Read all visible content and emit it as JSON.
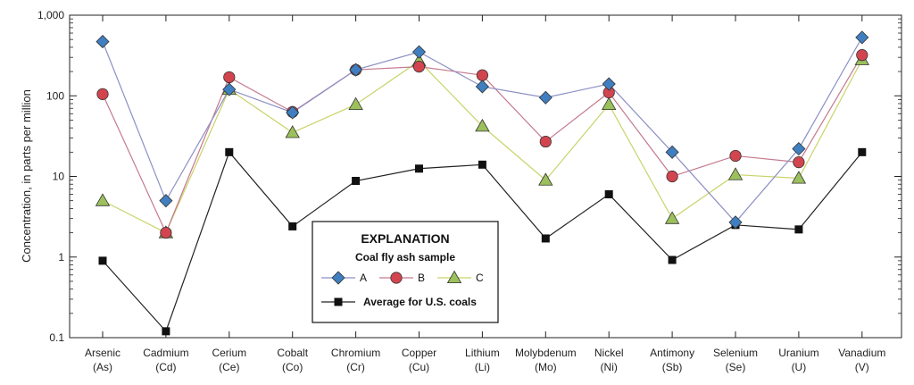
{
  "chart_data": {
    "type": "line",
    "ylabel": "Concentration, in parts per million",
    "yscale": "log",
    "ylim": [
      0.1,
      1000
    ],
    "yticks": [
      {
        "value": 1000,
        "label": "1,000"
      },
      {
        "value": 100,
        "label": "100"
      },
      {
        "value": 10,
        "label": "10"
      },
      {
        "value": 1,
        "label": "1"
      },
      {
        "value": 0.1,
        "label": "0.1"
      }
    ],
    "categories": [
      {
        "name": "Arsenic",
        "symbol": "(As)"
      },
      {
        "name": "Cadmium",
        "symbol": "(Cd)"
      },
      {
        "name": "Cerium",
        "symbol": "(Ce)"
      },
      {
        "name": "Cobalt",
        "symbol": "(Co)"
      },
      {
        "name": "Chromium",
        "symbol": "(Cr)"
      },
      {
        "name": "Copper",
        "symbol": "(Cu)"
      },
      {
        "name": "Lithium",
        "symbol": "(Li)"
      },
      {
        "name": "Molybdenum",
        "symbol": "(Mo)"
      },
      {
        "name": "Nickel",
        "symbol": "(Ni)"
      },
      {
        "name": "Antimony",
        "symbol": "(Sb)"
      },
      {
        "name": "Selenium",
        "symbol": "(Se)"
      },
      {
        "name": "Uranium",
        "symbol": "(U)"
      },
      {
        "name": "Vanadium",
        "symbol": "(V)"
      }
    ],
    "series": [
      {
        "name": "A",
        "marker": "diamond",
        "line_color": "#8c8fc4",
        "marker_color": "#3f7fc1",
        "values": [
          470,
          5,
          120,
          62,
          210,
          350,
          130,
          95,
          140,
          20,
          2.7,
          22,
          530
        ]
      },
      {
        "name": "B",
        "marker": "circle",
        "line_color": "#c47a8e",
        "marker_color": "#d2454f",
        "values": [
          105,
          2,
          170,
          63,
          210,
          230,
          180,
          27,
          110,
          10,
          18,
          15,
          320
        ]
      },
      {
        "name": "C",
        "marker": "triangle",
        "line_color": "#c9d36a",
        "marker_color": "#9cc05c",
        "values": [
          5,
          2,
          120,
          35,
          78,
          270,
          42,
          9,
          78,
          3,
          10.5,
          9.5,
          280
        ]
      },
      {
        "name": "Average for U.S. coals",
        "marker": "square",
        "line_color": "#222222",
        "marker_color": "#111111",
        "values": [
          0.9,
          0.12,
          20,
          2.4,
          8.8,
          12.5,
          14,
          1.7,
          6,
          0.92,
          2.5,
          2.2,
          20
        ]
      }
    ],
    "legend": {
      "placement": "bottom-center",
      "title": "EXPLANATION",
      "subtitle": "Coal fly ash sample"
    },
    "grid": false
  }
}
